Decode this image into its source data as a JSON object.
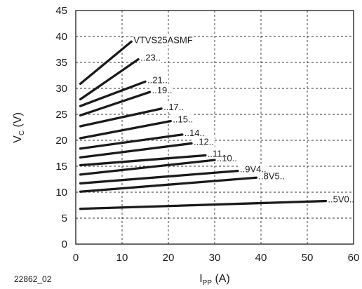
{
  "figure_id": "22862_02",
  "chart_data": {
    "type": "line",
    "title": "",
    "xlabel": {
      "main": "I",
      "sub": "PP",
      "unit": " (A)"
    },
    "ylabel": {
      "main": "V",
      "sub": "C",
      "unit": " (V)"
    },
    "xlim": [
      0,
      60
    ],
    "ylim": [
      0,
      45
    ],
    "xticks": [
      0,
      10,
      20,
      30,
      40,
      50,
      60
    ],
    "yticks": [
      0,
      5,
      10,
      15,
      20,
      25,
      30,
      35,
      40,
      45
    ],
    "grid": "dashed",
    "line_color": "#1a1a1a",
    "series": [
      {
        "name": "..5V0..",
        "x": [
          1,
          54
        ],
        "y": [
          6.8,
          8.3
        ]
      },
      {
        "name": "..8V5..",
        "x": [
          1,
          39
        ],
        "y": [
          10.1,
          12.8
        ]
      },
      {
        "name": "..9V4..",
        "x": [
          1,
          35
        ],
        "y": [
          11.7,
          14.1
        ]
      },
      {
        "name": "..10..",
        "x": [
          1,
          30
        ],
        "y": [
          13.4,
          16.2
        ]
      },
      {
        "name": "..11..",
        "x": [
          1,
          28
        ],
        "y": [
          15.2,
          17.1
        ]
      },
      {
        "name": "..12..",
        "x": [
          1,
          25
        ],
        "y": [
          16.7,
          19.4
        ]
      },
      {
        "name": "..14..",
        "x": [
          1,
          23
        ],
        "y": [
          18.4,
          21.1
        ]
      },
      {
        "name": "..15..",
        "x": [
          1,
          20.5
        ],
        "y": [
          20.4,
          23.7
        ]
      },
      {
        "name": "..17..",
        "x": [
          1,
          18.5
        ],
        "y": [
          22.7,
          26.1
        ]
      },
      {
        "name": "..19..",
        "x": [
          1,
          16
        ],
        "y": [
          24.8,
          29.3
        ]
      },
      {
        "name": "..21..",
        "x": [
          1,
          15
        ],
        "y": [
          26.6,
          31.3
        ]
      },
      {
        "name": "..23..",
        "x": [
          1,
          13.5
        ],
        "y": [
          27.9,
          35.6
        ]
      },
      {
        "name": "VTVS25ASMF",
        "x": [
          1,
          12
        ],
        "y": [
          30.9,
          39.0
        ]
      }
    ]
  }
}
